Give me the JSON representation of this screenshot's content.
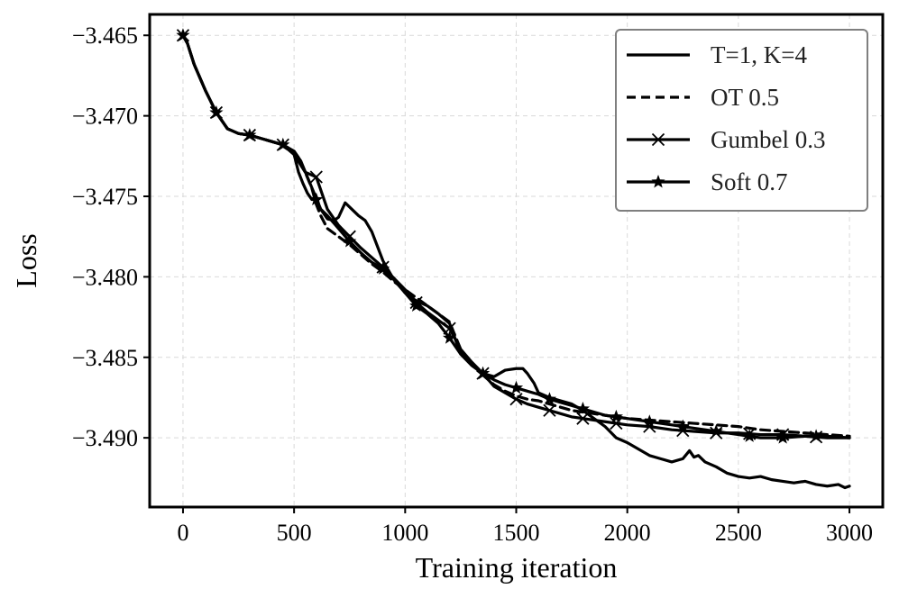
{
  "chart_data": {
    "type": "line",
    "title": "",
    "xlabel": "Training iteration",
    "ylabel": "Loss",
    "xlim": [
      -150,
      3150
    ],
    "ylim": [
      -3.4943,
      -3.4637
    ],
    "xticks": [
      0,
      500,
      1000,
      1500,
      2000,
      2500,
      3000
    ],
    "yticks": [
      -3.465,
      -3.47,
      -3.475,
      -3.48,
      -3.485,
      -3.49
    ],
    "xtick_labels": [
      "0",
      "500",
      "1000",
      "1500",
      "2000",
      "2500",
      "3000"
    ],
    "ytick_labels": [
      "−3.465",
      "−3.470",
      "−3.475",
      "−3.480",
      "−3.485",
      "−3.490"
    ],
    "grid": true,
    "legend_position": "top-right",
    "series": [
      {
        "name": "T=1, K=4",
        "style": "solid",
        "marker": "none",
        "x": [
          0,
          20,
          50,
          100,
          150,
          200,
          250,
          300,
          350,
          400,
          450,
          500,
          530,
          560,
          590,
          620,
          650,
          680,
          700,
          730,
          760,
          790,
          820,
          850,
          900,
          950,
          1000,
          1050,
          1100,
          1150,
          1200,
          1250,
          1300,
          1350,
          1400,
          1450,
          1500,
          1530,
          1550,
          1580,
          1600,
          1650,
          1700,
          1750,
          1800,
          1850,
          1900,
          1950,
          2000,
          2050,
          2100,
          2150,
          2200,
          2250,
          2280,
          2300,
          2320,
          2350,
          2400,
          2450,
          2500,
          2550,
          2600,
          2650,
          2700,
          2750,
          2800,
          2850,
          2900,
          2950,
          2980,
          3000
        ],
        "values": [
          -3.465,
          -3.4655,
          -3.4668,
          -3.4684,
          -3.4698,
          -3.4708,
          -3.4711,
          -3.4712,
          -3.4714,
          -3.4716,
          -3.4718,
          -3.4722,
          -3.4728,
          -3.4738,
          -3.4748,
          -3.4758,
          -3.4764,
          -3.4765,
          -3.4763,
          -3.4754,
          -3.4758,
          -3.4762,
          -3.4765,
          -3.4772,
          -3.479,
          -3.4802,
          -3.481,
          -3.4815,
          -3.4818,
          -3.4823,
          -3.4829,
          -3.4848,
          -3.4855,
          -3.486,
          -3.4862,
          -3.4858,
          -3.4857,
          -3.4857,
          -3.486,
          -3.4866,
          -3.4872,
          -3.4875,
          -3.4877,
          -3.4879,
          -3.4883,
          -3.4888,
          -3.4893,
          -3.49,
          -3.4903,
          -3.4907,
          -3.4911,
          -3.4913,
          -3.4915,
          -3.4913,
          -3.4908,
          -3.4912,
          -3.4911,
          -3.4915,
          -3.4918,
          -3.4922,
          -3.4924,
          -3.4925,
          -3.4924,
          -3.4926,
          -3.4927,
          -3.4928,
          -3.4927,
          -3.4929,
          -3.493,
          -3.4929,
          -3.4931,
          -3.493
        ]
      },
      {
        "name": "OT 0.5",
        "style": "dashed",
        "marker": "none",
        "x": [
          0,
          20,
          50,
          100,
          150,
          200,
          250,
          300,
          350,
          400,
          450,
          500,
          520,
          550,
          580,
          600,
          620,
          650,
          700,
          750,
          800,
          850,
          900,
          950,
          1000,
          1050,
          1100,
          1150,
          1200,
          1220,
          1250,
          1280,
          1300,
          1320,
          1350,
          1400,
          1450,
          1500,
          1550,
          1600,
          1650,
          1700,
          1750,
          1800,
          1850,
          1900,
          1950,
          2000,
          2100,
          2200,
          2300,
          2400,
          2500,
          2600,
          2700,
          2800,
          2900,
          3000
        ],
        "values": [
          -3.465,
          -3.4655,
          -3.4668,
          -3.4684,
          -3.4698,
          -3.4708,
          -3.4711,
          -3.4712,
          -3.4714,
          -3.4716,
          -3.4718,
          -3.4722,
          -3.4726,
          -3.4735,
          -3.4745,
          -3.4755,
          -3.4762,
          -3.477,
          -3.4775,
          -3.478,
          -3.4786,
          -3.4792,
          -3.4797,
          -3.4803,
          -3.4808,
          -3.4813,
          -3.4818,
          -3.4823,
          -3.4828,
          -3.4835,
          -3.4845,
          -3.4852,
          -3.4855,
          -3.4857,
          -3.4861,
          -3.4867,
          -3.4871,
          -3.4874,
          -3.4876,
          -3.4877,
          -3.4879,
          -3.4881,
          -3.4883,
          -3.4884,
          -3.4885,
          -3.4886,
          -3.4887,
          -3.4888,
          -3.4889,
          -3.489,
          -3.4891,
          -3.4892,
          -3.4893,
          -3.4895,
          -3.4896,
          -3.4897,
          -3.4898,
          -3.4899
        ]
      },
      {
        "name": "Gumbel 0.3",
        "style": "solid",
        "marker": "x",
        "x": [
          0,
          20,
          50,
          100,
          150,
          200,
          250,
          300,
          350,
          400,
          450,
          500,
          550,
          600,
          650,
          700,
          750,
          800,
          850,
          900,
          950,
          1000,
          1050,
          1100,
          1150,
          1200,
          1250,
          1300,
          1350,
          1400,
          1450,
          1500,
          1550,
          1600,
          1650,
          1700,
          1750,
          1800,
          1900,
          2000,
          2100,
          2200,
          2300,
          2400,
          2500,
          2600,
          2700,
          2800,
          2900,
          3000
        ],
        "values": [
          -3.465,
          -3.4655,
          -3.4668,
          -3.4684,
          -3.4698,
          -3.4708,
          -3.4711,
          -3.4712,
          -3.4714,
          -3.4716,
          -3.4718,
          -3.4724,
          -3.4735,
          -3.4738,
          -3.4758,
          -3.4768,
          -3.4775,
          -3.4782,
          -3.4788,
          -3.4794,
          -3.4801,
          -3.4808,
          -3.4816,
          -3.4822,
          -3.4827,
          -3.4832,
          -3.4845,
          -3.4853,
          -3.486,
          -3.4868,
          -3.4872,
          -3.4876,
          -3.4879,
          -3.4881,
          -3.4883,
          -3.4885,
          -3.4887,
          -3.4888,
          -3.489,
          -3.4892,
          -3.4893,
          -3.4895,
          -3.4896,
          -3.4897,
          -3.4897,
          -3.4898,
          -3.4898,
          -3.4899,
          -3.49,
          -3.49
        ]
      },
      {
        "name": "Soft 0.7",
        "style": "solid",
        "marker": "star",
        "x": [
          0,
          20,
          50,
          100,
          150,
          200,
          250,
          300,
          350,
          400,
          450,
          500,
          520,
          540,
          560,
          580,
          600,
          620,
          650,
          700,
          750,
          800,
          850,
          900,
          950,
          1000,
          1050,
          1100,
          1150,
          1200,
          1250,
          1300,
          1350,
          1400,
          1450,
          1500,
          1550,
          1600,
          1650,
          1700,
          1750,
          1800,
          1850,
          1900,
          1950,
          2000,
          2100,
          2200,
          2300,
          2400,
          2500,
          2600,
          2700,
          2800,
          2900,
          3000
        ],
        "values": [
          -3.465,
          -3.4655,
          -3.4668,
          -3.4684,
          -3.4698,
          -3.4708,
          -3.4711,
          -3.4712,
          -3.4714,
          -3.4716,
          -3.4718,
          -3.4724,
          -3.4735,
          -3.4742,
          -3.4748,
          -3.4752,
          -3.4752,
          -3.4758,
          -3.4762,
          -3.477,
          -3.4778,
          -3.4785,
          -3.4791,
          -3.4795,
          -3.4801,
          -3.481,
          -3.4818,
          -3.4823,
          -3.4829,
          -3.4838,
          -3.4848,
          -3.4855,
          -3.486,
          -3.4864,
          -3.4867,
          -3.4869,
          -3.4871,
          -3.4873,
          -3.4876,
          -3.4878,
          -3.488,
          -3.4882,
          -3.4884,
          -3.4886,
          -3.4887,
          -3.4888,
          -3.489,
          -3.4892,
          -3.4894,
          -3.4896,
          -3.4898,
          -3.49,
          -3.49,
          -3.4899,
          -3.4899,
          -3.49
        ]
      }
    ]
  }
}
